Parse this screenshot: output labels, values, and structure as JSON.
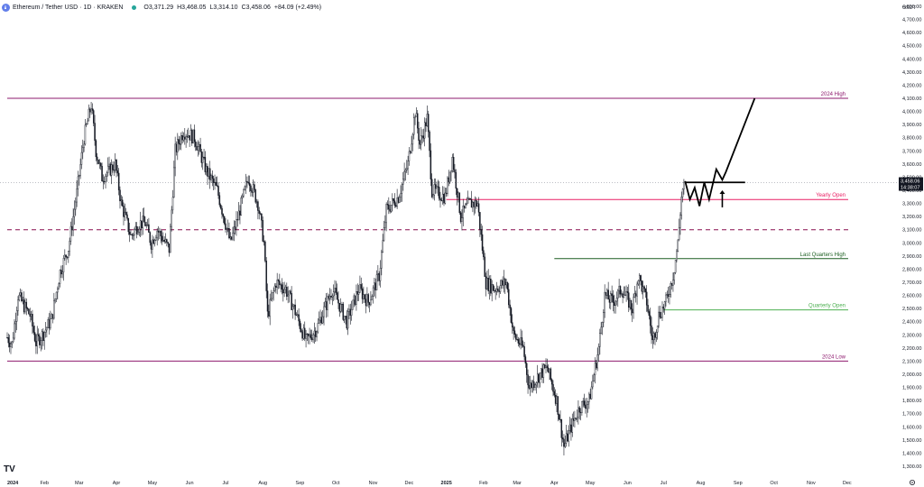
{
  "header": {
    "symbol": "Ethereum / Tether USD · 1D · KRAKEN",
    "open": "O3,371.29",
    "high": "H3,468.05",
    "low": "L3,314.10",
    "close": "C3,458.06",
    "change": "+84.09 (+2.49%)"
  },
  "currency_label": "USDT",
  "price_box": {
    "price": "3,458.06",
    "countdown": "14:38:07",
    "value": 3458.06
  },
  "logo_text": "TV",
  "chart_data": {
    "type": "candlestick",
    "y_axis": {
      "min": 1300,
      "max": 4800,
      "step": 100,
      "tick_labels": [
        "1,300.00",
        "1,400.00",
        "1,500.00",
        "1,600.00",
        "1,700.00",
        "1,800.00",
        "1,900.00",
        "2,000.00",
        "2,100.00",
        "2,200.00",
        "2,300.00",
        "2,400.00",
        "2,500.00",
        "2,600.00",
        "2,700.00",
        "2,800.00",
        "2,900.00",
        "3,000.00",
        "3,100.00",
        "3,200.00",
        "3,300.00",
        "3,400.00",
        "3,500.00",
        "3,600.00",
        "3,700.00",
        "3,800.00",
        "3,900.00",
        "4,000.00",
        "4,100.00",
        "4,200.00",
        "4,300.00",
        "4,400.00",
        "4,500.00",
        "4,600.00",
        "4,700.00",
        "4,800.00"
      ]
    },
    "x_axis": {
      "tick_labels": [
        "2024",
        "Feb",
        "Mar",
        "Apr",
        "May",
        "Jun",
        "Jul",
        "Aug",
        "Sep",
        "Oct",
        "Nov",
        "Dec",
        "2025",
        "Feb",
        "Mar",
        "Apr",
        "May",
        "Jun",
        "Jul",
        "Aug",
        "Sep",
        "Oct",
        "Nov",
        "Dec"
      ],
      "bold_labels": [
        "2024",
        "2025"
      ]
    },
    "levels": [
      {
        "name": "2024 High",
        "value": 4100,
        "color": "#8e1a6e",
        "style": "solid"
      },
      {
        "name": "Yearly Open",
        "value": 3330,
        "color": "#e91e63",
        "style": "solid"
      },
      {
        "name": "",
        "value": 3100,
        "color": "#880e4f",
        "style": "dashed"
      },
      {
        "name": "Last Quarters High",
        "value": 2880,
        "color": "#1b5e20",
        "style": "solid"
      },
      {
        "name": "Quarterly Open",
        "value": 2490,
        "color": "#4caf50",
        "style": "solid"
      },
      {
        "name": "2024 Low",
        "value": 2100,
        "color": "#8e1a6e",
        "style": "solid"
      }
    ],
    "close_path": [
      [
        "2024-01-01",
        2280
      ],
      [
        "2024-01-05",
        2230
      ],
      [
        "2024-01-10",
        2600
      ],
      [
        "2024-01-15",
        2520
      ],
      [
        "2024-01-20",
        2450
      ],
      [
        "2024-01-25",
        2240
      ],
      [
        "2024-01-31",
        2310
      ],
      [
        "2024-02-07",
        2420
      ],
      [
        "2024-02-14",
        2780
      ],
      [
        "2024-02-21",
        2960
      ],
      [
        "2024-02-28",
        3380
      ],
      [
        "2024-03-05",
        3800
      ],
      [
        "2024-03-11",
        4050
      ],
      [
        "2024-03-15",
        3700
      ],
      [
        "2024-03-20",
        3500
      ],
      [
        "2024-03-26",
        3550
      ],
      [
        "2024-03-31",
        3600
      ],
      [
        "2024-04-05",
        3300
      ],
      [
        "2024-04-13",
        3050
      ],
      [
        "2024-04-20",
        3150
      ],
      [
        "2024-04-25",
        3150
      ],
      [
        "2024-04-30",
        3000
      ],
      [
        "2024-05-05",
        3100
      ],
      [
        "2024-05-15",
        2950
      ],
      [
        "2024-05-20",
        3700
      ],
      [
        "2024-05-27",
        3850
      ],
      [
        "2024-06-05",
        3800
      ],
      [
        "2024-06-15",
        3550
      ],
      [
        "2024-06-24",
        3400
      ],
      [
        "2024-07-05",
        3000
      ],
      [
        "2024-07-10",
        3150
      ],
      [
        "2024-07-20",
        3500
      ],
      [
        "2024-07-28",
        3300
      ],
      [
        "2024-08-02",
        3000
      ],
      [
        "2024-08-05",
        2450
      ],
      [
        "2024-08-12",
        2700
      ],
      [
        "2024-08-20",
        2650
      ],
      [
        "2024-08-27",
        2500
      ],
      [
        "2024-09-06",
        2250
      ],
      [
        "2024-09-15",
        2350
      ],
      [
        "2024-09-28",
        2650
      ],
      [
        "2024-10-10",
        2400
      ],
      [
        "2024-10-20",
        2650
      ],
      [
        "2024-10-28",
        2550
      ],
      [
        "2024-11-06",
        2750
      ],
      [
        "2024-11-12",
        3250
      ],
      [
        "2024-11-22",
        3350
      ],
      [
        "2024-11-30",
        3600
      ],
      [
        "2024-12-06",
        4000
      ],
      [
        "2024-12-10",
        3750
      ],
      [
        "2024-12-16",
        3950
      ],
      [
        "2024-12-20",
        3400
      ],
      [
        "2024-12-31",
        3350
      ],
      [
        "2025-01-06",
        3650
      ],
      [
        "2025-01-13",
        3200
      ],
      [
        "2025-01-20",
        3300
      ],
      [
        "2025-01-27",
        3300
      ],
      [
        "2025-02-03",
        2700
      ],
      [
        "2025-02-10",
        2650
      ],
      [
        "2025-02-20",
        2700
      ],
      [
        "2025-02-26",
        2300
      ],
      [
        "2025-03-06",
        2200
      ],
      [
        "2025-03-11",
        1900
      ],
      [
        "2025-03-20",
        2000
      ],
      [
        "2025-03-26",
        2050
      ],
      [
        "2025-04-03",
        1800
      ],
      [
        "2025-04-09",
        1450
      ],
      [
        "2025-04-15",
        1600
      ],
      [
        "2025-04-22",
        1750
      ],
      [
        "2025-04-30",
        1800
      ],
      [
        "2025-05-08",
        2200
      ],
      [
        "2025-05-13",
        2600
      ],
      [
        "2025-05-20",
        2550
      ],
      [
        "2025-05-27",
        2650
      ],
      [
        "2025-06-05",
        2500
      ],
      [
        "2025-06-10",
        2750
      ],
      [
        "2025-06-17",
        2550
      ],
      [
        "2025-06-22",
        2250
      ],
      [
        "2025-06-27",
        2450
      ],
      [
        "2025-07-03",
        2550
      ],
      [
        "2025-07-09",
        2750
      ],
      [
        "2025-07-13",
        3000
      ],
      [
        "2025-07-16",
        3350
      ],
      [
        "2025-07-18",
        3458.06
      ]
    ],
    "projection": [
      [
        "2025-07-19",
        3470
      ],
      [
        "2025-07-23",
        3330
      ],
      [
        "2025-07-27",
        3420
      ],
      [
        "2025-07-31",
        3280
      ],
      [
        "2025-08-04",
        3460
      ],
      [
        "2025-08-08",
        3330
      ],
      [
        "2025-08-14",
        3560
      ],
      [
        "2025-08-19",
        3480
      ],
      [
        "2025-08-22",
        3540
      ],
      [
        "2025-09-15",
        4100
      ]
    ],
    "horizontal_ray": {
      "value": 3460,
      "start": "2025-07-19",
      "end": "2025-09-07"
    },
    "arrow": {
      "date": "2025-08-19",
      "from": 3270,
      "to": 3400
    }
  }
}
